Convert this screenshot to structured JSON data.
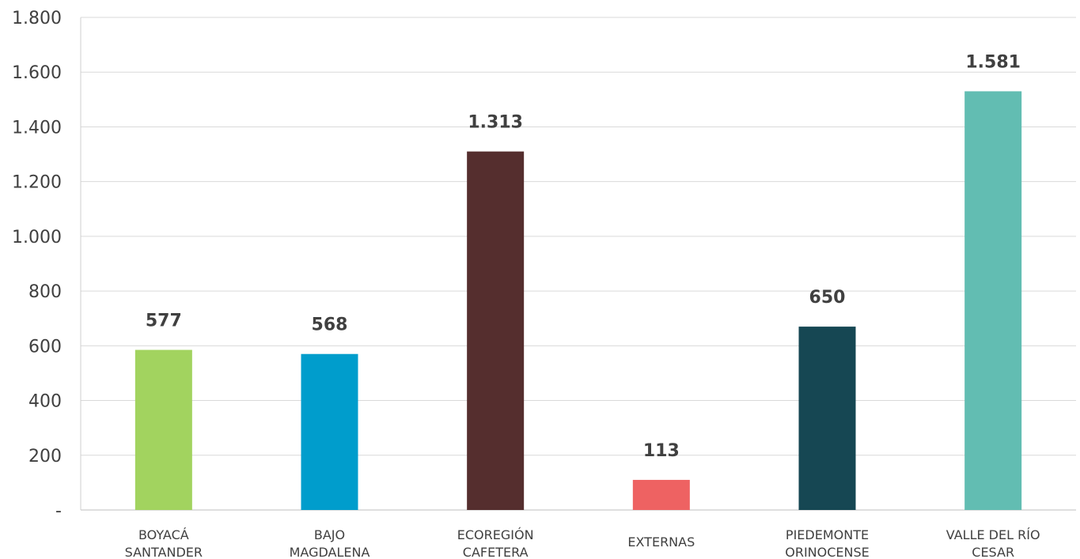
{
  "chart_data": {
    "type": "bar",
    "title": "",
    "xlabel": "",
    "ylabel": "",
    "categories": [
      [
        "BOYACÁ",
        "SANTANDER"
      ],
      [
        "BAJO",
        "MAGDALENA"
      ],
      [
        "ECOREGIÓN",
        "CAFETERA"
      ],
      [
        "EXTERNAS"
      ],
      [
        "PIEDEMONTE",
        "ORINOCENSE"
      ],
      [
        "VALLE DEL RÍO",
        "CESAR"
      ]
    ],
    "values": [
      577,
      568,
      1313,
      113,
      650,
      1581
    ],
    "bar_heights": [
      585,
      570,
      1310,
      110,
      670,
      1530
    ],
    "data_labels": [
      "577",
      "568",
      "1.313",
      "113",
      "650",
      "1.581"
    ],
    "colors": [
      "#a2d35f",
      "#009dcc",
      "#552e2e",
      "#ee6262",
      "#164753",
      "#62bdb2"
    ],
    "ylim": [
      0,
      1800
    ],
    "yticks": [
      0,
      200,
      400,
      600,
      800,
      1000,
      1200,
      1400,
      1600,
      1800
    ],
    "ytick_labels": [
      "-",
      "200",
      "400",
      "600",
      "800",
      "1.000",
      "1.200",
      "1.400",
      "1.600",
      "1.800"
    ],
    "grid": true,
    "legend": "none"
  }
}
